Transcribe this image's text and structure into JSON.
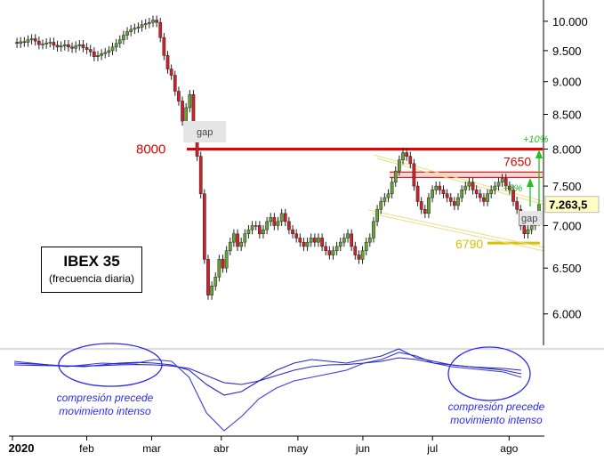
{
  "chart_data": {
    "type": "candlestick",
    "title": "IBEX 35",
    "subtitle": "(frecuencia diaria)",
    "y_ticks": [
      "10.000",
      "9.500",
      "9.000",
      "8.500",
      "8.000",
      "7.500",
      "7.000",
      "6.500",
      "6.000"
    ],
    "y_tick_values": [
      10000,
      9500,
      9000,
      8500,
      8000,
      7500,
      7000,
      6500,
      6000
    ],
    "ylim": [
      5680,
      10250
    ],
    "log_scale": true,
    "x_ticks": [
      {
        "label": "2020",
        "date": "2020-01-02",
        "bold": true
      },
      {
        "label": "feb",
        "date": "2020-02-03"
      },
      {
        "label": "mar",
        "date": "2020-03-02"
      },
      {
        "label": "abr",
        "date": "2020-04-01"
      },
      {
        "label": "may",
        "date": "2020-05-04"
      },
      {
        "label": "jun",
        "date": "2020-06-01"
      },
      {
        "label": "jul",
        "date": "2020-07-01"
      },
      {
        "label": "ago",
        "date": "2020-08-03"
      }
    ],
    "last_price_label": "7.263,5",
    "last_price_value": 7263.5,
    "levels": [
      {
        "label": "8000",
        "value": 8000,
        "color": "#e60000"
      },
      {
        "label": "7650",
        "value": 7650,
        "color": "#e60000"
      },
      {
        "label": "6790",
        "value": 6790,
        "color": "#d8c200"
      }
    ],
    "annotations": {
      "gap_label": "gap",
      "gap2_label": "gap",
      "pct10": "+10%",
      "pct5": "+5%"
    },
    "oscillator_notes": [
      "compresión precede movimiento intenso",
      "compresión precede movimiento intenso"
    ],
    "closes": [
      9620,
      9650,
      9640,
      9680,
      9700,
      9660,
      9600,
      9610,
      9630,
      9640,
      9590,
      9560,
      9580,
      9600,
      9560,
      9540,
      9580,
      9600,
      9550,
      9520,
      9480,
      9400,
      9420,
      9450,
      9470,
      9500,
      9560,
      9620,
      9680,
      9760,
      9820,
      9860,
      9880,
      9900,
      9940,
      9960,
      9980,
      10020,
      9980,
      9720,
      9420,
      9200,
      9100,
      8850,
      8700,
      8400,
      8600,
      8800,
      8300,
      7900,
      7400,
      6600,
      6200,
      6300,
      6400,
      6600,
      6500,
      6700,
      6800,
      6900,
      6750,
      6800,
      6900,
      6950,
      7000,
      7000,
      6900,
      6950,
      7050,
      7100,
      7000,
      7050,
      7150,
      7050,
      6950,
      6900,
      6850,
      6800,
      6750,
      6800,
      6850,
      6800,
      6850,
      6750,
      6700,
      6650,
      6700,
      6750,
      6800,
      6850,
      6900,
      6750,
      6650,
      6600,
      6700,
      6800,
      6850,
      7050,
      7200,
      7300,
      7350,
      7400,
      7550,
      7700,
      7850,
      7950,
      7900,
      7800,
      7500,
      7300,
      7200,
      7150,
      7350,
      7450,
      7500,
      7450,
      7400,
      7350,
      7300,
      7250,
      7350,
      7450,
      7500,
      7550,
      7450,
      7400,
      7350,
      7300,
      7400,
      7450,
      7500,
      7550,
      7600,
      7500,
      7450,
      7300,
      7200,
      7000,
      6900,
      6950,
      7000,
      7050,
      7263.5
    ]
  }
}
